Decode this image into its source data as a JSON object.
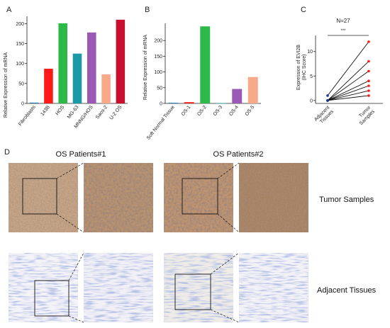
{
  "panel_labels": [
    "A",
    "B",
    "C",
    "D"
  ],
  "colors": {
    "blue": "#1f77b4",
    "red": "#ff1a1a",
    "green": "#2db84a",
    "teal": "#1a9aa6",
    "purple": "#9b59b6",
    "salmon": "#f7a98a",
    "crimson": "#c8102e",
    "navy": "#1f3a93"
  },
  "chart_data": [
    {
      "type": "bar",
      "panel": "A",
      "ylabel": "Relative Expression of mRNA",
      "ylim": [
        0,
        215
      ],
      "yticks": [
        0,
        50,
        100,
        150,
        200
      ],
      "categories": [
        "Fibroblasts",
        "143B",
        "HOS",
        "MG-63",
        "MNNG/HOS",
        "Saos-2",
        "U-2 OS"
      ],
      "values": [
        2,
        87,
        201,
        125,
        178,
        73,
        210
      ],
      "bar_colors": [
        "#1f77b4",
        "#ff1a1a",
        "#2db84a",
        "#1a9aa6",
        "#9b59b6",
        "#f7a98a",
        "#c8102e"
      ]
    },
    {
      "type": "bar",
      "panel": "B",
      "ylabel": "Relative Expression of mRNA",
      "ylim": [
        0,
        250
      ],
      "yticks": [
        0,
        50,
        100,
        150,
        200
      ],
      "categories": [
        "Soft Normal Tissue",
        "OS-1",
        "OS-2",
        "OS-3",
        "OS-4",
        "OS-5"
      ],
      "values": [
        2,
        4,
        245,
        1,
        46,
        84
      ],
      "bar_colors": [
        "#1f77b4",
        "#ff1a1a",
        "#2db84a",
        "#1a9aa6",
        "#9b59b6",
        "#f7a98a"
      ]
    },
    {
      "type": "line",
      "panel": "C",
      "title": "N=27",
      "significance": "***",
      "ylabel_line1": "Expression of EVI2B",
      "ylabel_line2": "(IHC Score)",
      "ylim": [
        -0.6,
        13
      ],
      "yticks": [
        0,
        5,
        10
      ],
      "categories": [
        "Adjacent Tissues",
        "Tumor Samples"
      ],
      "category_lines": [
        [
          "Adjacent",
          "Tissues"
        ],
        [
          "Tumor",
          "Samples"
        ]
      ],
      "pairs": [
        [
          1,
          12
        ],
        [
          0,
          8
        ],
        [
          0,
          6
        ],
        [
          0,
          4
        ],
        [
          0,
          3
        ],
        [
          0,
          2
        ],
        [
          0,
          1
        ]
      ]
    }
  ],
  "panel_d": {
    "titles": [
      "OS Patients#1",
      "OS Patients#2"
    ],
    "rows": [
      "Tumor Samples",
      "Adjacent Tissues"
    ]
  }
}
